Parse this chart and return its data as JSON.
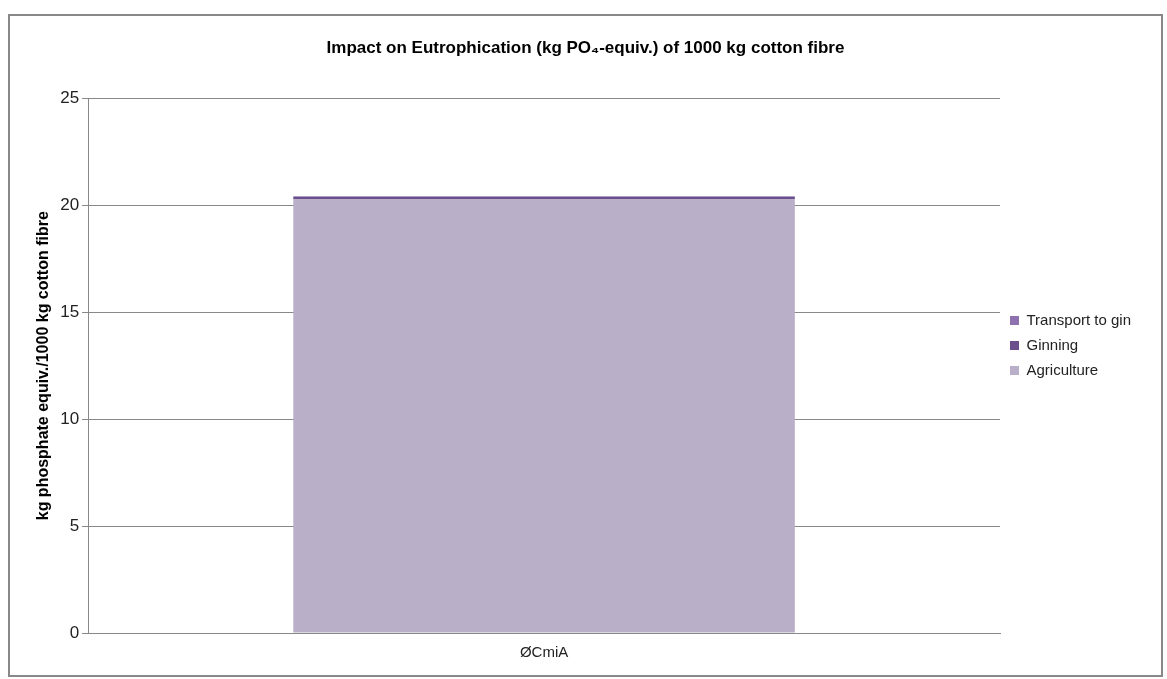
{
  "chart_data": {
    "type": "bar",
    "title": "Impact on Eutrophication (kg PO₄-equiv.) of 1000 kg cotton fibre",
    "ylabel": "kg phosphate equiv./1000 kg cotton fibre",
    "categories": [
      "ØCmiA"
    ],
    "stacked": true,
    "series": [
      {
        "name": "Agriculture",
        "color": "#b9afc9",
        "values": [
          20.3
        ]
      },
      {
        "name": "Ginning",
        "color": "#6a4f8c",
        "values": [
          0.1
        ]
      },
      {
        "name": "Transport to gin",
        "color": "#8e72b0",
        "values": [
          0.03
        ]
      }
    ],
    "ylim": [
      0,
      25
    ],
    "yticks": [
      0,
      5,
      10,
      15,
      20,
      25
    ],
    "grid": "y",
    "legend": "right"
  }
}
